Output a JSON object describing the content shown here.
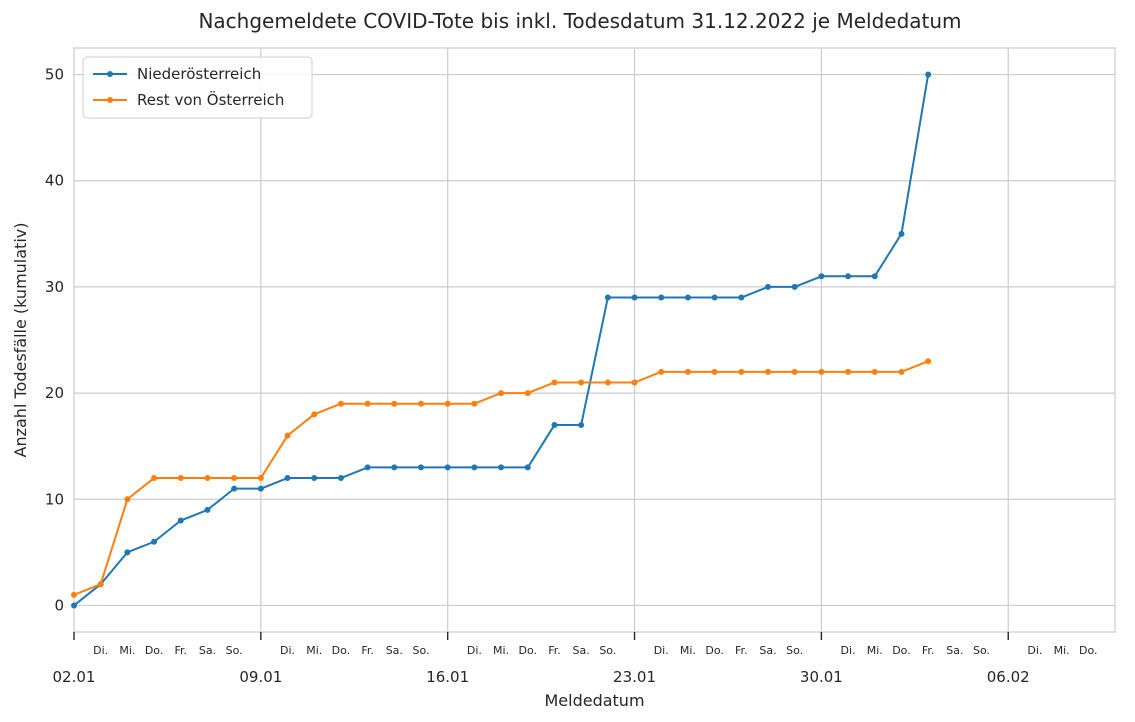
{
  "chart_data": {
    "type": "line",
    "title": "Nachgemeldete COVID-Tote bis inkl. Todesdatum 31.12.2022 je Meldedatum",
    "xlabel": "Meldedatum",
    "ylabel": "Anzahl Todesfälle (kumulativ)",
    "xlim": [
      "2023-01-02",
      "2023-02-10"
    ],
    "ylim": [
      -2.5,
      52.5
    ],
    "grid": true,
    "legend_position": "top-left",
    "y_ticks": [
      0,
      10,
      20,
      30,
      40,
      50
    ],
    "x_major_ticks": [
      {
        "date": "2023-01-02",
        "label": "02.01"
      },
      {
        "date": "2023-01-09",
        "label": "09.01"
      },
      {
        "date": "2023-01-16",
        "label": "16.01"
      },
      {
        "date": "2023-01-23",
        "label": "23.01"
      },
      {
        "date": "2023-01-30",
        "label": "30.01"
      },
      {
        "date": "2023-02-06",
        "label": "06.02"
      }
    ],
    "x_minor_labels": [
      "Di.",
      "Mi.",
      "Do.",
      "Fr.",
      "Sa.",
      "So."
    ],
    "x": [
      "2023-01-02",
      "2023-01-03",
      "2023-01-04",
      "2023-01-05",
      "2023-01-06",
      "2023-01-07",
      "2023-01-08",
      "2023-01-09",
      "2023-01-10",
      "2023-01-11",
      "2023-01-12",
      "2023-01-13",
      "2023-01-14",
      "2023-01-15",
      "2023-01-16",
      "2023-01-17",
      "2023-01-18",
      "2023-01-19",
      "2023-01-20",
      "2023-01-21",
      "2023-01-22",
      "2023-01-23",
      "2023-01-24",
      "2023-01-25",
      "2023-01-26",
      "2023-01-27",
      "2023-01-28",
      "2023-01-29",
      "2023-01-30",
      "2023-01-31",
      "2023-02-01",
      "2023-02-02",
      "2023-02-03"
    ],
    "series": [
      {
        "name": "Niederösterreich",
        "color": "#1f77b4",
        "values": [
          0,
          2,
          5,
          6,
          8,
          9,
          11,
          11,
          12,
          12,
          12,
          13,
          13,
          13,
          13,
          13,
          13,
          13,
          17,
          17,
          29,
          29,
          29,
          29,
          29,
          29,
          30,
          30,
          31,
          31,
          31,
          35,
          50
        ]
      },
      {
        "name": "Rest von Österreich",
        "color": "#ff7f0e",
        "values": [
          1,
          2,
          10,
          12,
          12,
          12,
          12,
          12,
          16,
          18,
          19,
          19,
          19,
          19,
          19,
          19,
          20,
          20,
          21,
          21,
          21,
          21,
          22,
          22,
          22,
          22,
          22,
          22,
          22,
          22,
          22,
          22,
          23
        ]
      }
    ]
  }
}
